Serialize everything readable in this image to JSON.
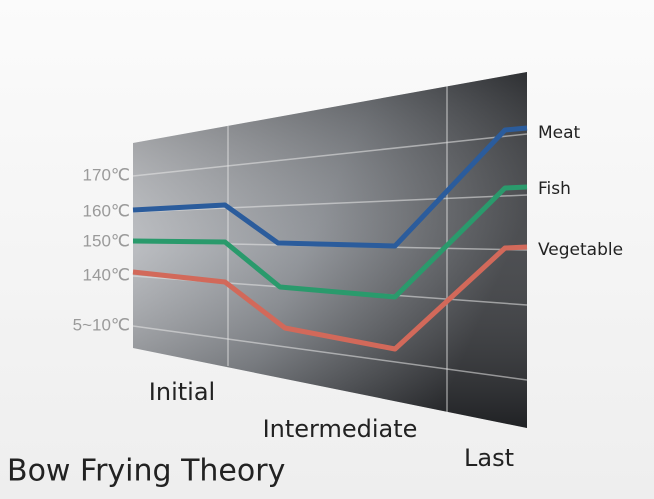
{
  "title": "Bow Frying Theory",
  "temperature_labels": [
    "170℃",
    "160℃",
    "150℃",
    "140℃",
    "5~10℃"
  ],
  "stages": [
    "Initial",
    "Intermediate",
    "Last"
  ],
  "series": [
    "Meat",
    "Fish",
    "Vegetable"
  ]
}
